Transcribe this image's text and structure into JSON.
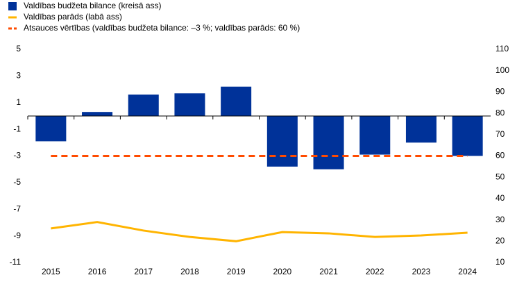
{
  "chart_data": {
    "type": "bar-line",
    "categories": [
      "2015",
      "2016",
      "2017",
      "2018",
      "2019",
      "2020",
      "2021",
      "2022",
      "2023",
      "2024"
    ],
    "series": [
      {
        "name": "Valdības budžeta bilance (kreisā ass)",
        "color": "#003299",
        "type": "bar",
        "axis": "y",
        "values": [
          -1.9,
          0.3,
          1.6,
          1.7,
          2.2,
          -3.8,
          -4.0,
          -2.9,
          -2.0,
          -3.0
        ]
      },
      {
        "name": "Valdības parāds (labā ass)",
        "color": "#ffb400",
        "type": "line",
        "axis": "y2",
        "values": [
          26.0,
          29.0,
          25.0,
          22.0,
          20.0,
          24.3,
          23.7,
          22.0,
          22.7,
          24.0
        ]
      }
    ],
    "reference": {
      "name": "Atsauces vērtības (valdības budžeta bilance: –3 %; valdības parāds: 60 %)",
      "color": "#ff4b00",
      "value": -3
    },
    "ylim": [
      -11,
      5
    ],
    "yticks": [
      -11,
      -9,
      -7,
      -5,
      -3,
      -1,
      1,
      3,
      5
    ],
    "y2lim": [
      10,
      110
    ],
    "y2ticks": [
      10,
      20,
      30,
      40,
      50,
      60,
      70,
      80,
      90,
      100,
      110
    ]
  }
}
